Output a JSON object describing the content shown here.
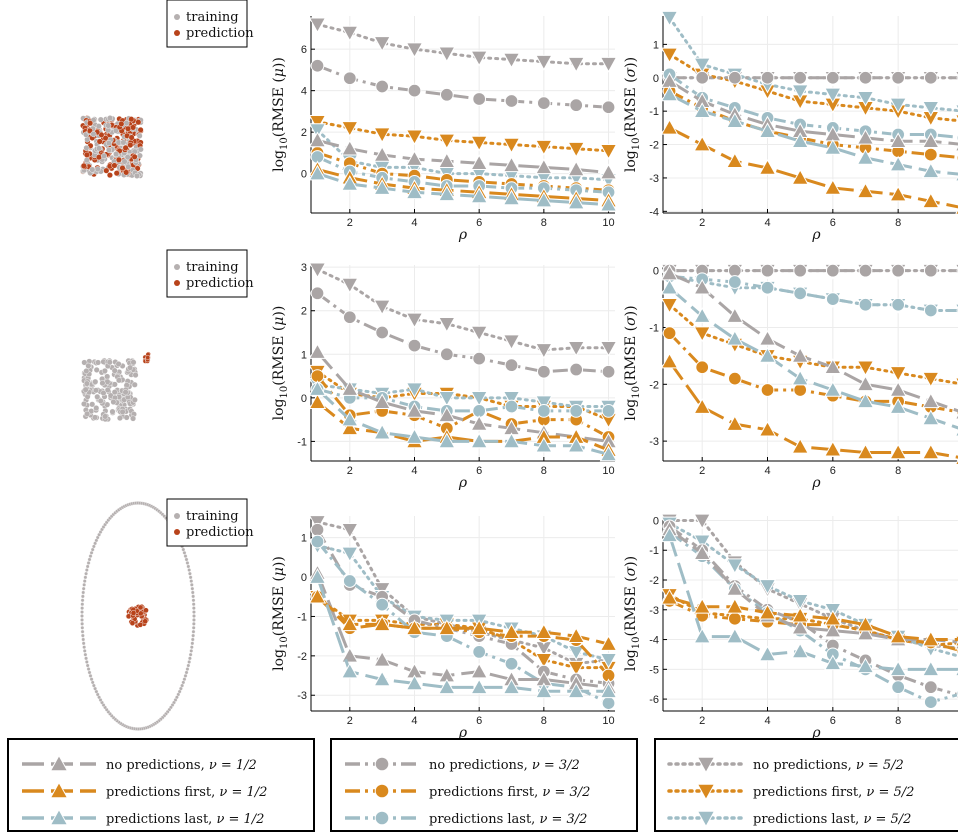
{
  "colors": {
    "no": "#aaa5a5",
    "first": "#d9891e",
    "last": "#9fbdc6",
    "training": "#b5b0b0",
    "prediction": "#b8431b"
  },
  "scatter_legend": {
    "training": "training",
    "prediction": "prediction"
  },
  "labels": {
    "x": "ρ",
    "y_mu": "log10(RMSE (μ))",
    "y_sigma": "log10(RMSE (σ))",
    "y_mu_parts": [
      "log",
      "10",
      "(RMSE (",
      "μ",
      "))"
    ],
    "y_sigma_parts": [
      "log",
      "10",
      "(RMSE (",
      "σ",
      "))"
    ]
  },
  "legend_groups": [
    {
      "entries": [
        {
          "text": "no predictions,",
          "nu": "ν = 1/2"
        },
        {
          "text": "predictions first,",
          "nu": "ν = 1/2"
        },
        {
          "text": "predictions last,",
          "nu": "ν = 1/2"
        }
      ]
    },
    {
      "entries": [
        {
          "text": "no predictions,",
          "nu": "ν = 3/2"
        },
        {
          "text": "predictions first,",
          "nu": "ν = 3/2"
        },
        {
          "text": "predictions last,",
          "nu": "ν = 3/2"
        }
      ]
    },
    {
      "entries": [
        {
          "text": "no predictions,",
          "nu": "ν = 5/2"
        },
        {
          "text": "predictions first,",
          "nu": "ν = 5/2"
        },
        {
          "text": "predictions last,",
          "nu": "ν = 5/2"
        }
      ]
    }
  ],
  "chart_data": [
    {
      "type": "line",
      "row": 1,
      "quantity": "mu",
      "xlabel": "ρ",
      "ylabel": "log10(RMSE (μ))",
      "xlim": [
        0.8,
        10.2
      ],
      "ylim": [
        -1.9,
        7.6
      ],
      "xticks": [
        2,
        4,
        6,
        8,
        10
      ],
      "yticks": [
        0,
        2,
        4,
        6
      ],
      "x": [
        1,
        2,
        3,
        4,
        5,
        6,
        7,
        8,
        9,
        10
      ],
      "series": [
        {
          "name": "no predictions, ν = 1/2",
          "values": [
            1.6,
            1.2,
            0.9,
            0.7,
            0.6,
            0.5,
            0.4,
            0.3,
            0.2,
            0.05
          ]
        },
        {
          "name": "predictions first, ν = 1/2",
          "values": [
            0.2,
            -0.2,
            -0.5,
            -0.7,
            -0.8,
            -0.9,
            -1.0,
            -1.1,
            -1.2,
            -1.3
          ]
        },
        {
          "name": "predictions last, ν = 1/2",
          "values": [
            0.0,
            -0.5,
            -0.7,
            -0.9,
            -1.0,
            -1.1,
            -1.2,
            -1.3,
            -1.4,
            -1.5
          ]
        },
        {
          "name": "no predictions, ν = 3/2",
          "values": [
            5.2,
            4.6,
            4.2,
            4.0,
            3.8,
            3.6,
            3.5,
            3.4,
            3.3,
            3.2
          ]
        },
        {
          "name": "predictions first, ν = 3/2",
          "values": [
            1.0,
            0.5,
            0.0,
            -0.1,
            -0.3,
            -0.4,
            -0.5,
            -0.6,
            -0.7,
            -0.8
          ]
        },
        {
          "name": "predictions last, ν = 3/2",
          "values": [
            0.8,
            0.1,
            -0.2,
            -0.4,
            -0.6,
            -0.6,
            -0.7,
            -0.7,
            -0.8,
            -0.9
          ]
        },
        {
          "name": "no predictions, ν = 5/2",
          "values": [
            7.2,
            6.8,
            6.3,
            6.0,
            5.8,
            5.6,
            5.5,
            5.4,
            5.3,
            5.3
          ]
        },
        {
          "name": "predictions first, ν = 5/2",
          "values": [
            2.5,
            2.2,
            1.9,
            1.8,
            1.6,
            1.5,
            1.4,
            1.3,
            1.2,
            1.1
          ]
        },
        {
          "name": "predictions last, ν = 5/2",
          "values": [
            2.1,
            0.6,
            0.3,
            0.3,
            0.0,
            0.0,
            -0.1,
            -0.2,
            -0.2,
            -0.3
          ]
        }
      ]
    },
    {
      "type": "line",
      "row": 1,
      "quantity": "sigma",
      "xlabel": "ρ",
      "ylabel": "log10(RMSE (σ))",
      "xlim": [
        0.8,
        10.2
      ],
      "ylim": [
        -4.05,
        1.85
      ],
      "xticks": [
        2,
        4,
        6,
        8,
        10
      ],
      "yticks": [
        -4,
        -3,
        -2,
        -1,
        0,
        1
      ],
      "x": [
        1,
        2,
        3,
        4,
        5,
        6,
        7,
        8,
        9,
        10
      ],
      "series": [
        {
          "name": "no predictions, ν = 1/2",
          "values": [
            -0.1,
            -0.7,
            -1.1,
            -1.4,
            -1.6,
            -1.7,
            -1.8,
            -1.9,
            -1.9,
            -2.0
          ]
        },
        {
          "name": "predictions first, ν = 1/2",
          "values": [
            -1.5,
            -2.0,
            -2.5,
            -2.7,
            -3.0,
            -3.3,
            -3.4,
            -3.5,
            -3.7,
            -3.9
          ]
        },
        {
          "name": "predictions last, ν = 1/2",
          "values": [
            -0.5,
            -1.0,
            -1.3,
            -1.6,
            -1.9,
            -2.1,
            -2.4,
            -2.6,
            -2.8,
            -2.9
          ]
        },
        {
          "name": "no predictions, ν = 3/2",
          "values": [
            0.0,
            0.0,
            0.0,
            0.0,
            0.0,
            0.0,
            0.0,
            0.0,
            0.0,
            0.0
          ]
        },
        {
          "name": "predictions first, ν = 3/2",
          "values": [
            -0.4,
            -0.9,
            -1.3,
            -1.6,
            -1.8,
            -2.0,
            -2.1,
            -2.2,
            -2.3,
            -2.4
          ]
        },
        {
          "name": "predictions last, ν = 3/2",
          "values": [
            0.1,
            -0.6,
            -0.9,
            -1.2,
            -1.4,
            -1.5,
            -1.6,
            -1.7,
            -1.7,
            -1.8
          ]
        },
        {
          "name": "no predictions, ν = 5/2",
          "values": [
            0.0,
            0.0,
            0.0,
            0.0,
            0.0,
            0.0,
            0.0,
            0.0,
            0.0,
            0.0
          ]
        },
        {
          "name": "predictions first, ν = 5/2",
          "values": [
            0.7,
            0.1,
            -0.1,
            -0.4,
            -0.7,
            -0.8,
            -0.9,
            -1.0,
            -1.2,
            -1.3
          ]
        },
        {
          "name": "predictions last, ν = 5/2",
          "values": [
            1.8,
            0.4,
            0.1,
            -0.2,
            -0.4,
            -0.5,
            -0.6,
            -0.8,
            -0.9,
            -1.0
          ]
        }
      ]
    },
    {
      "type": "line",
      "row": 2,
      "quantity": "mu",
      "xlabel": "ρ",
      "ylabel": "log10(RMSE (μ))",
      "xlim": [
        0.8,
        10.2
      ],
      "ylim": [
        -1.45,
        3.05
      ],
      "xticks": [
        2,
        4,
        6,
        8,
        10
      ],
      "yticks": [
        -1,
        0,
        1,
        2,
        3
      ],
      "x": [
        1,
        2,
        3,
        4,
        5,
        6,
        7,
        8,
        9,
        10
      ],
      "series": [
        {
          "name": "no predictions, ν = 1/2",
          "values": [
            1.05,
            0.2,
            -0.1,
            -0.3,
            -0.4,
            -0.6,
            -0.7,
            -0.8,
            -0.9,
            -1.0
          ]
        },
        {
          "name": "predictions first, ν = 1/2",
          "values": [
            -0.1,
            -0.7,
            -0.8,
            -1.0,
            -0.9,
            -1.0,
            -1.0,
            -0.9,
            -0.9,
            -1.2
          ]
        },
        {
          "name": "predictions last, ν = 1/2",
          "values": [
            0.2,
            -0.5,
            -0.8,
            -0.9,
            -1.0,
            -1.0,
            -1.0,
            -1.1,
            -1.1,
            -1.3
          ]
        },
        {
          "name": "no predictions, ν = 3/2",
          "values": [
            2.4,
            1.85,
            1.5,
            1.2,
            1.0,
            0.9,
            0.75,
            0.6,
            0.65,
            0.6
          ]
        },
        {
          "name": "predictions first, ν = 3/2",
          "values": [
            0.5,
            -0.4,
            -0.3,
            -0.4,
            -0.7,
            -0.3,
            -0.6,
            -0.5,
            -0.5,
            -0.9
          ]
        },
        {
          "name": "predictions last, ν = 3/2",
          "values": [
            0.2,
            0.0,
            0.0,
            -0.2,
            -0.3,
            -0.3,
            -0.2,
            -0.3,
            -0.3,
            -0.3
          ]
        },
        {
          "name": "no predictions, ν = 5/2",
          "values": [
            2.95,
            2.6,
            2.1,
            1.8,
            1.7,
            1.5,
            1.3,
            1.1,
            1.15,
            1.15
          ]
        },
        {
          "name": "predictions first, ν = 5/2",
          "values": [
            0.6,
            0.1,
            0.0,
            0.1,
            0.1,
            0.0,
            -0.2,
            -0.2,
            -0.2,
            -0.5
          ]
        },
        {
          "name": "predictions last, ν = 5/2",
          "values": [
            0.3,
            0.2,
            0.1,
            0.2,
            0.0,
            0.0,
            0.0,
            -0.1,
            -0.2,
            -0.2
          ]
        }
      ]
    },
    {
      "type": "line",
      "row": 2,
      "quantity": "sigma",
      "xlabel": "ρ",
      "ylabel": "log10(RMSE (σ))",
      "xlim": [
        0.8,
        10.2
      ],
      "ylim": [
        -3.35,
        0.1
      ],
      "xticks": [
        2,
        4,
        6,
        8,
        10
      ],
      "yticks": [
        -3,
        -2,
        -1,
        0
      ],
      "x": [
        1,
        2,
        3,
        4,
        5,
        6,
        7,
        8,
        9,
        10
      ],
      "series": [
        {
          "name": "no predictions, ν = 1/2",
          "values": [
            -0.05,
            -0.3,
            -0.8,
            -1.2,
            -1.5,
            -1.7,
            -2.0,
            -2.1,
            -2.3,
            -2.5
          ]
        },
        {
          "name": "predictions first, ν = 1/2",
          "values": [
            -1.6,
            -2.4,
            -2.7,
            -2.8,
            -3.1,
            -3.15,
            -3.2,
            -3.2,
            -3.2,
            -3.3
          ]
        },
        {
          "name": "predictions last, ν = 1/2",
          "values": [
            -0.3,
            -0.8,
            -1.2,
            -1.5,
            -1.9,
            -2.1,
            -2.3,
            -2.4,
            -2.6,
            -2.8
          ]
        },
        {
          "name": "no predictions, ν = 3/2",
          "values": [
            0.0,
            0.0,
            0.0,
            0.0,
            0.0,
            0.0,
            0.0,
            0.0,
            0.0,
            0.0
          ]
        },
        {
          "name": "predictions first, ν = 3/2",
          "values": [
            -1.1,
            -1.7,
            -1.9,
            -2.1,
            -2.1,
            -2.2,
            -2.3,
            -2.3,
            -2.4,
            -2.5
          ]
        },
        {
          "name": "predictions last, ν = 3/2",
          "values": [
            -0.1,
            -0.15,
            -0.2,
            -0.3,
            -0.4,
            -0.5,
            -0.6,
            -0.6,
            -0.7,
            -0.7
          ]
        },
        {
          "name": "no predictions, ν = 5/2",
          "values": [
            0.0,
            0.0,
            0.0,
            0.0,
            0.0,
            0.0,
            0.0,
            0.0,
            0.0,
            0.0
          ]
        },
        {
          "name": "predictions first, ν = 5/2",
          "values": [
            -0.6,
            -1.1,
            -1.3,
            -1.5,
            -1.6,
            -1.7,
            -1.7,
            -1.8,
            -1.9,
            -2.0
          ]
        },
        {
          "name": "predictions last, ν = 5/2",
          "values": [
            -0.1,
            -0.2,
            -0.3,
            -0.3,
            -0.4,
            -0.5,
            -0.6,
            -0.6,
            -0.7,
            -0.7
          ]
        }
      ]
    },
    {
      "type": "line",
      "row": 3,
      "quantity": "mu",
      "xlabel": "ρ",
      "ylabel": "log10(RMSE (μ))",
      "xlim": [
        0.8,
        10.2
      ],
      "ylim": [
        -3.4,
        1.55
      ],
      "xticks": [
        2,
        4,
        6,
        8,
        10
      ],
      "yticks": [
        -3,
        -2,
        -1,
        0,
        1
      ],
      "x": [
        1,
        2,
        3,
        4,
        5,
        6,
        7,
        8,
        9,
        10
      ],
      "series": [
        {
          "name": "no predictions, ν = 1/2",
          "values": [
            0.1,
            -2.0,
            -2.1,
            -2.4,
            -2.5,
            -2.4,
            -2.6,
            -2.6,
            -2.7,
            -2.8
          ]
        },
        {
          "name": "predictions first, ν = 1/2",
          "values": [
            -0.5,
            -1.2,
            -1.2,
            -1.3,
            -1.3,
            -1.3,
            -1.4,
            -1.4,
            -1.5,
            -1.7
          ]
        },
        {
          "name": "predictions last, ν = 1/2",
          "values": [
            0.0,
            -2.4,
            -2.6,
            -2.7,
            -2.8,
            -2.8,
            -2.8,
            -2.9,
            -2.9,
            -2.9
          ]
        },
        {
          "name": "no predictions, ν = 3/2",
          "values": [
            1.2,
            -0.2,
            -0.5,
            -1.1,
            -1.3,
            -1.5,
            -1.7,
            -2.4,
            -2.6,
            -2.7
          ]
        },
        {
          "name": "predictions first, ν = 3/2",
          "values": [
            -0.5,
            -1.3,
            -1.2,
            -1.3,
            -1.3,
            -1.4,
            -1.5,
            -1.5,
            -1.6,
            -2.5
          ]
        },
        {
          "name": "predictions last, ν = 3/2",
          "values": [
            0.9,
            -0.1,
            -0.7,
            -1.4,
            -1.5,
            -1.9,
            -2.2,
            -2.7,
            -2.8,
            -3.2
          ]
        },
        {
          "name": "no predictions, ν = 5/2",
          "values": [
            1.4,
            1.2,
            -0.3,
            -1.0,
            -1.2,
            -1.4,
            -1.6,
            -1.8,
            -2.2,
            -2.1
          ]
        },
        {
          "name": "predictions first, ν = 5/2",
          "values": [
            -0.5,
            -1.1,
            -1.1,
            -1.2,
            -1.2,
            -1.3,
            -1.6,
            -2.1,
            -2.3,
            -2.3
          ]
        },
        {
          "name": "predictions last, ν = 5/2",
          "values": [
            0.8,
            0.6,
            -0.5,
            -1.0,
            -1.1,
            -1.1,
            -1.3,
            -1.5,
            -1.9,
            -2.1
          ]
        }
      ]
    },
    {
      "type": "line",
      "row": 3,
      "quantity": "sigma",
      "xlabel": "ρ",
      "ylabel": "log10(RMSE (σ))",
      "xlim": [
        0.8,
        10.2
      ],
      "ylim": [
        -6.4,
        0.15
      ],
      "xticks": [
        2,
        4,
        6,
        8,
        10
      ],
      "yticks": [
        -6,
        -5,
        -4,
        -3,
        -2,
        -1,
        0
      ],
      "x": [
        1,
        2,
        3,
        4,
        5,
        6,
        7,
        8,
        9,
        10
      ],
      "series": [
        {
          "name": "no predictions, ν = 1/2",
          "values": [
            -0.3,
            -1.1,
            -2.3,
            -3.2,
            -3.6,
            -3.7,
            -3.8,
            -4.0,
            -4.0,
            -4.1
          ]
        },
        {
          "name": "predictions first, ν = 1/2",
          "values": [
            -2.6,
            -2.9,
            -2.9,
            -3.1,
            -3.2,
            -3.3,
            -3.5,
            -3.9,
            -4.0,
            -4.0
          ]
        },
        {
          "name": "predictions last, ν = 1/2",
          "values": [
            -0.5,
            -3.9,
            -3.9,
            -4.5,
            -4.4,
            -4.8,
            -4.9,
            -5.0,
            -5.0,
            -5.0
          ]
        },
        {
          "name": "no predictions, ν = 3/2",
          "values": [
            -0.2,
            -1.0,
            -2.2,
            -3.0,
            -3.4,
            -4.2,
            -4.7,
            -5.2,
            -5.6,
            -5.9
          ]
        },
        {
          "name": "predictions first, ν = 3/2",
          "values": [
            -2.7,
            -3.2,
            -3.3,
            -3.4,
            -3.5,
            -3.5,
            -3.7,
            -4.0,
            -4.1,
            -4.4
          ]
        },
        {
          "name": "predictions last, ν = 3/2",
          "values": [
            -0.4,
            -1.2,
            -2.3,
            -3.1,
            -3.7,
            -4.5,
            -5.0,
            -5.6,
            -6.1,
            -5.8
          ]
        },
        {
          "name": "no predictions, ν = 5/2",
          "values": [
            0.0,
            0.0,
            -1.4,
            -2.3,
            -2.8,
            -3.3,
            -3.7,
            -4.0,
            -4.2,
            -4.3
          ]
        },
        {
          "name": "predictions first, ν = 5/2",
          "values": [
            -2.5,
            -3.1,
            -3.2,
            -3.3,
            -3.3,
            -3.5,
            -3.7,
            -4.0,
            -4.2,
            -4.1
          ]
        },
        {
          "name": "predictions last, ν = 5/2",
          "values": [
            -0.1,
            -0.7,
            -1.5,
            -2.2,
            -2.7,
            -3.0,
            -3.5,
            -3.9,
            -4.3,
            -4.6
          ]
        }
      ]
    }
  ]
}
